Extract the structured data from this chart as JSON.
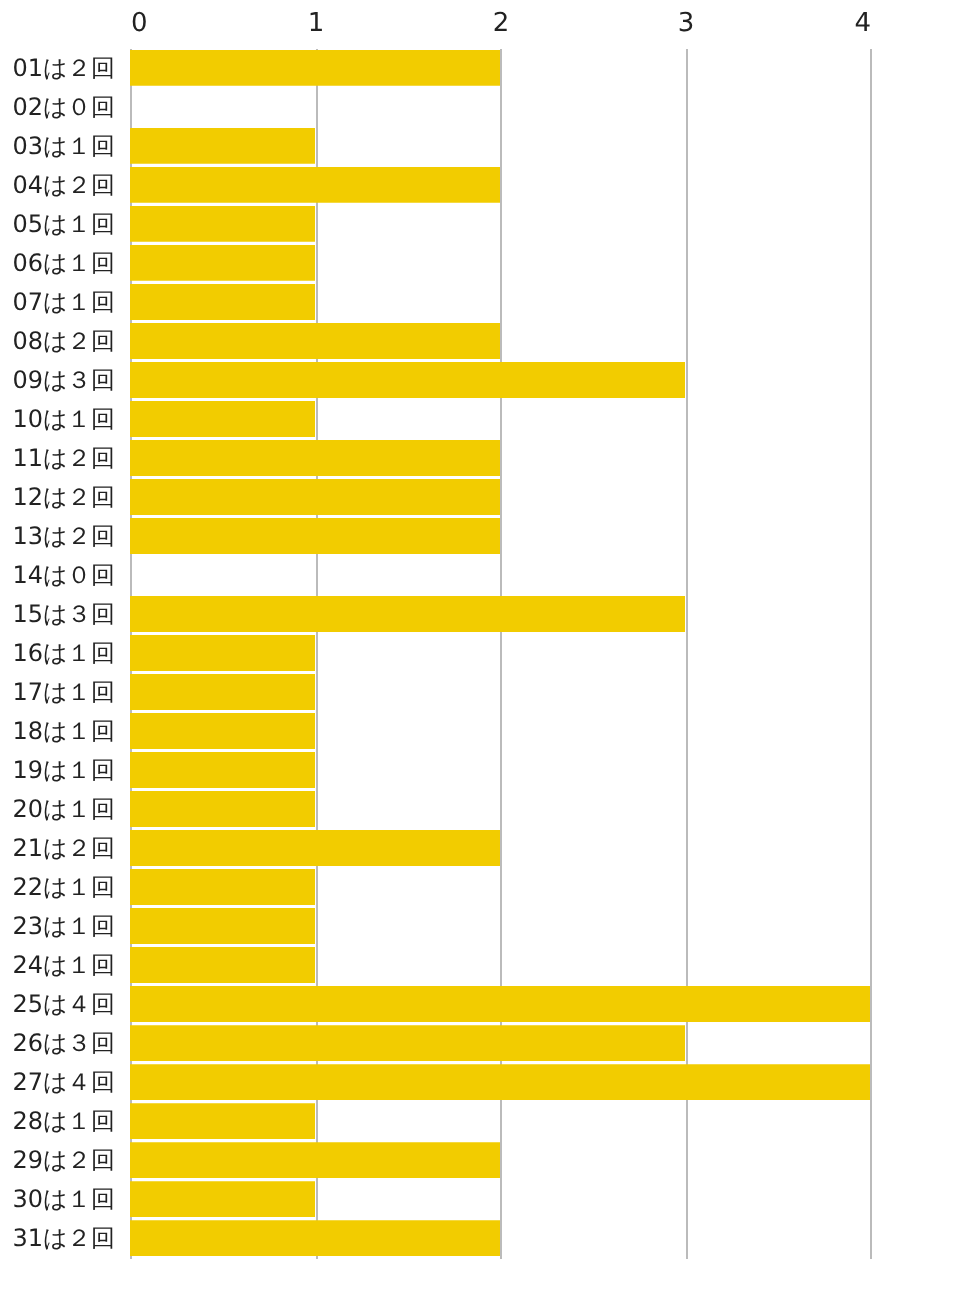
{
  "chart_data": {
    "type": "bar",
    "orientation": "horizontal",
    "categories": [
      "01は２回",
      "02は０回",
      "03は１回",
      "04は２回",
      "05は１回",
      "06は１回",
      "07は１回",
      "08は２回",
      "09は３回",
      "10は１回",
      "11は２回",
      "12は２回",
      "13は２回",
      "14は０回",
      "15は３回",
      "16は１回",
      "17は１回",
      "18は１回",
      "19は１回",
      "20は１回",
      "21は２回",
      "22は１回",
      "23は１回",
      "24は１回",
      "25は４回",
      "26は３回",
      "27は４回",
      "28は１回",
      "29は２回",
      "30は１回",
      "31は２回"
    ],
    "values": [
      2,
      0,
      1,
      2,
      1,
      1,
      1,
      2,
      3,
      1,
      2,
      2,
      2,
      0,
      3,
      1,
      1,
      1,
      1,
      1,
      2,
      1,
      1,
      1,
      4,
      3,
      4,
      1,
      2,
      1,
      2
    ],
    "color": "#f2cc00",
    "xlim": [
      0,
      4
    ],
    "xticks": [
      0,
      1,
      2,
      3,
      4
    ],
    "grid": "x"
  }
}
